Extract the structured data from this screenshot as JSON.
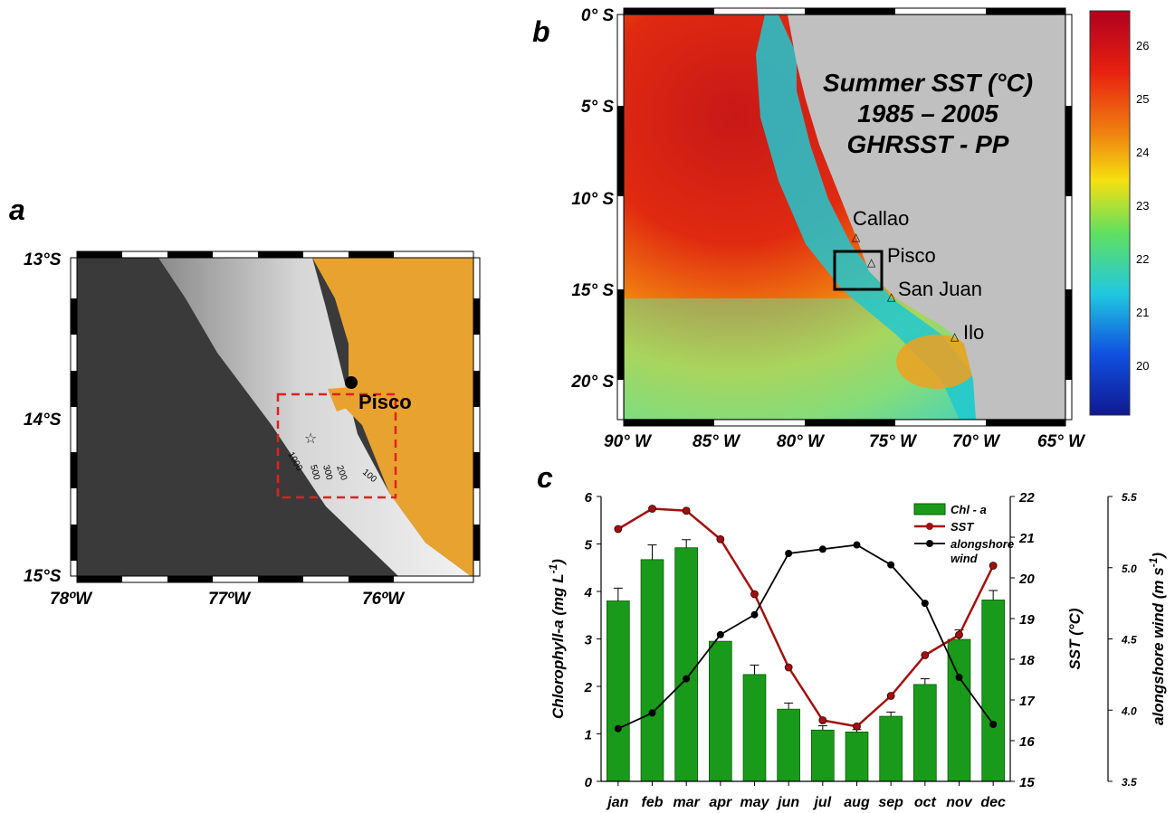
{
  "panel_labels": {
    "a": "a",
    "b": "b",
    "c": "c"
  },
  "colors": {
    "land_a": "#e8a230",
    "ocean_deep": "#3a3a3a",
    "land_b": "#c0c0c0",
    "bar_fill": "#1a9a1a",
    "sst_line": "#a01010",
    "wind_line": "#000000",
    "box_dashed": "#e02020"
  },
  "map_a": {
    "lat_labels": [
      "13°S",
      "14°S",
      "15°S"
    ],
    "lon_labels": [
      "78ºW",
      "77ºW",
      "76ºW"
    ],
    "city": "Pisco",
    "depth_labels": [
      "1000",
      "500",
      "300",
      "200",
      "100"
    ],
    "station_icon": "star-icon"
  },
  "map_b": {
    "title_lines": [
      "Summer SST (°C)",
      "1985 – 2005",
      "GHRSST - PP"
    ],
    "lat_labels": [
      "0° S",
      "5° S",
      "10° S",
      "15° S",
      "20° S"
    ],
    "lon_labels": [
      "90° W",
      "85° W",
      "80° W",
      "75° W",
      "70° W",
      "65° W"
    ],
    "places": [
      "Callao",
      "Pisco",
      "San Juan",
      "Ilo"
    ],
    "colorbar_ticks": [
      "26",
      "25",
      "24",
      "23",
      "22",
      "21",
      "20"
    ]
  },
  "chart_data": {
    "type": "bar",
    "categories": [
      "jan",
      "feb",
      "mar",
      "apr",
      "may",
      "jun",
      "jul",
      "aug",
      "sep",
      "oct",
      "nov",
      "dec"
    ],
    "ylabel": "Chlorophyll-a (mg L-1)",
    "ylabel_parts": {
      "main": "Chlorophyll-a (mg L",
      "sup": "-1",
      "end": ")"
    },
    "ylim": [
      0,
      6
    ],
    "yticks": [
      "0",
      "1",
      "2",
      "3",
      "4",
      "5",
      "6"
    ],
    "y2label": "SST (°C)",
    "y2lim": [
      15,
      22
    ],
    "y2ticks": [
      "15",
      "16",
      "17",
      "18",
      "19",
      "20",
      "21",
      "22"
    ],
    "y3label": "alongshore wind (m s-1)",
    "y3label_parts": {
      "main": "alongshore wind (m s",
      "sup": "-1",
      "end": ")"
    },
    "y3lim": [
      3.5,
      5.5
    ],
    "y3ticks": [
      "3.5",
      "4.0",
      "4.5",
      "5.0",
      "5.5"
    ],
    "legend": [
      "Chl - a",
      "SST",
      "alongshore wind"
    ],
    "legend_wind_lines": [
      "alongshore",
      "wind"
    ],
    "legend_position": "top-right",
    "series": [
      {
        "name": "Chl - a",
        "type": "bar",
        "axis": "left",
        "values": [
          3.8,
          4.67,
          4.92,
          2.95,
          2.25,
          1.52,
          1.08,
          1.04,
          1.37,
          2.04,
          2.99,
          3.82
        ],
        "errors": [
          0.27,
          0.31,
          0.17,
          0.0,
          0.2,
          0.13,
          0.09,
          0.05,
          0.09,
          0.12,
          0.2,
          0.2
        ]
      },
      {
        "name": "SST",
        "type": "line",
        "axis": "right",
        "values": [
          21.2,
          21.7,
          21.65,
          20.95,
          19.6,
          17.8,
          16.5,
          16.35,
          17.1,
          18.1,
          18.6,
          20.3
        ]
      },
      {
        "name": "alongshore wind",
        "type": "line",
        "axis": "far-right",
        "values": [
          3.87,
          3.98,
          4.22,
          4.53,
          4.67,
          5.1,
          5.13,
          5.16,
          5.02,
          4.75,
          4.23,
          3.9
        ]
      }
    ]
  }
}
